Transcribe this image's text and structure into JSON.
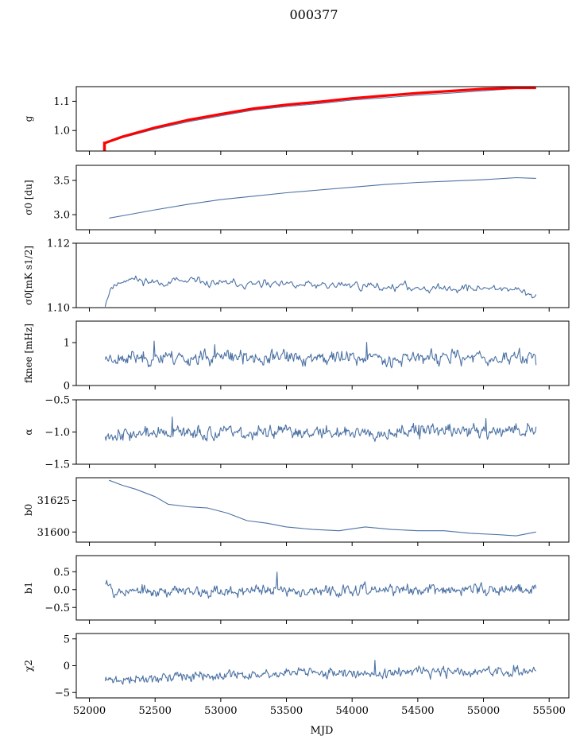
{
  "figure": {
    "title": "000377",
    "xlabel": "MJD"
  },
  "colors": {
    "series": "#4c72a4",
    "overlay": "#ff0000",
    "frame": "#000000"
  },
  "chart_data": [
    {
      "type": "line",
      "ylabel": "g",
      "xlim": [
        51900,
        55650
      ],
      "ylim": [
        0.93,
        1.15
      ],
      "yticks": [
        1.0,
        1.1
      ],
      "ytick_labels": [
        "1.0",
        "1.1"
      ],
      "series": [
        {
          "style": "blue-thin",
          "x": [
            52120,
            52250,
            52500,
            52750,
            53000,
            53250,
            53500,
            53750,
            54000,
            54250,
            54500,
            54750,
            55000,
            55250,
            55400
          ],
          "y": [
            0.955,
            0.975,
            1.005,
            1.03,
            1.05,
            1.07,
            1.082,
            1.092,
            1.104,
            1.112,
            1.121,
            1.128,
            1.136,
            1.144,
            1.146
          ]
        },
        {
          "style": "red-thick",
          "x": [
            52120,
            52250,
            52500,
            52750,
            53000,
            53250,
            53500,
            53750,
            54000,
            54250,
            54500,
            54750,
            55000,
            55250,
            55400
          ],
          "y": [
            0.958,
            0.979,
            1.01,
            1.036,
            1.056,
            1.075,
            1.088,
            1.098,
            1.11,
            1.119,
            1.128,
            1.135,
            1.142,
            1.146,
            1.146
          ]
        },
        {
          "style": "red-spike",
          "x": [
            52115,
            52115
          ],
          "y": [
            0.925,
            0.962
          ]
        }
      ]
    },
    {
      "type": "line",
      "ylabel": "σ0 [du]",
      "xlim": [
        51900,
        55650
      ],
      "ylim": [
        2.78,
        3.72
      ],
      "yticks": [
        3.0,
        3.5
      ],
      "ytick_labels": [
        "3.0",
        "3.5"
      ],
      "series": [
        {
          "style": "blue",
          "x": [
            52150,
            52300,
            52500,
            52750,
            53000,
            53250,
            53500,
            53750,
            54000,
            54250,
            54500,
            54750,
            55000,
            55250,
            55400
          ],
          "y": [
            2.95,
            3.0,
            3.07,
            3.15,
            3.22,
            3.27,
            3.32,
            3.36,
            3.4,
            3.44,
            3.47,
            3.49,
            3.51,
            3.54,
            3.53
          ]
        }
      ]
    },
    {
      "type": "line",
      "ylabel": "σ0[mK s1/2]",
      "xlim": [
        51900,
        55650
      ],
      "ylim": [
        1.1,
        1.12
      ],
      "yticks": [
        1.1,
        1.12
      ],
      "ytick_labels": [
        "1.10",
        "1.12"
      ],
      "series": [
        {
          "style": "noisy",
          "seed": 11,
          "n": 340,
          "x0": 52120,
          "x1": 55400,
          "base_x": [
            52120,
            52160,
            52280,
            52500,
            52700,
            53000,
            53300,
            53600,
            54000,
            54300,
            54700,
            55000,
            55200,
            55400
          ],
          "base_y": [
            1.101,
            1.106,
            1.109,
            1.108,
            1.108,
            1.1075,
            1.107,
            1.107,
            1.107,
            1.1065,
            1.106,
            1.106,
            1.106,
            1.103
          ],
          "noise": 0.001
        }
      ]
    },
    {
      "type": "line",
      "ylabel": "fknee [mHz]",
      "xlim": [
        51900,
        55650
      ],
      "ylim": [
        0.0,
        1.5
      ],
      "yticks": [
        0,
        1
      ],
      "ytick_labels": [
        "0",
        "1"
      ],
      "series": [
        {
          "style": "noisy",
          "seed": 23,
          "n": 520,
          "x0": 52120,
          "x1": 55400,
          "base_x": [
            52120,
            55400
          ],
          "base_y": [
            0.65,
            0.65
          ],
          "noise": 0.13
        }
      ]
    },
    {
      "type": "line",
      "ylabel": "α",
      "xlim": [
        51900,
        55650
      ],
      "ylim": [
        -1.5,
        -0.5
      ],
      "yticks": [
        -1.5,
        -1.0,
        -0.5
      ],
      "ytick_labels": [
        "−1.5",
        "−1.0",
        "−0.5"
      ],
      "series": [
        {
          "style": "noisy",
          "seed": 37,
          "n": 560,
          "x0": 52120,
          "x1": 55400,
          "base_x": [
            52120,
            55400
          ],
          "base_y": [
            -1.03,
            -0.97
          ],
          "noise": 0.08
        }
      ]
    },
    {
      "type": "line",
      "ylabel": "b0",
      "xlim": [
        51900,
        55650
      ],
      "ylim": [
        31592,
        31643
      ],
      "yticks": [
        31600,
        31625
      ],
      "ytick_labels": [
        "31600",
        "31625"
      ],
      "series": [
        {
          "style": "blue",
          "x": [
            52150,
            52250,
            52350,
            52500,
            52600,
            52750,
            52900,
            53050,
            53200,
            53350,
            53500,
            53700,
            53900,
            54100,
            54300,
            54500,
            54700,
            54900,
            55100,
            55250,
            55400
          ],
          "y": [
            31641,
            31637,
            31634,
            31628,
            31622,
            31620,
            31619,
            31615,
            31609,
            31607,
            31604,
            31602,
            31601,
            31604,
            31602,
            31601,
            31601,
            31599,
            31598,
            31597,
            31600
          ]
        }
      ]
    },
    {
      "type": "line",
      "ylabel": "b1",
      "xlim": [
        51900,
        55650
      ],
      "ylim": [
        -0.85,
        0.95
      ],
      "yticks": [
        -0.5,
        0.0,
        0.5
      ],
      "ytick_labels": [
        "−0.5",
        "0.0",
        "0.5"
      ],
      "series": [
        {
          "style": "noisy",
          "seed": 53,
          "n": 560,
          "x0": 52120,
          "x1": 55400,
          "base_x": [
            52120,
            52200,
            55400
          ],
          "base_y": [
            0.3,
            -0.05,
            0.0
          ],
          "noise": 0.12
        }
      ]
    },
    {
      "type": "line",
      "ylabel": "χ2",
      "xlim": [
        51900,
        55650
      ],
      "ylim": [
        -6,
        6
      ],
      "yticks": [
        -5,
        0,
        5
      ],
      "ytick_labels": [
        "−5",
        "0",
        "5"
      ],
      "xticks": [
        52000,
        52500,
        53000,
        53500,
        54000,
        54500,
        55000,
        55500
      ],
      "xtick_labels": [
        "52000",
        "52500",
        "53000",
        "53500",
        "54000",
        "54500",
        "55000",
        "55500"
      ],
      "series": [
        {
          "style": "noisy",
          "seed": 71,
          "n": 560,
          "x0": 52120,
          "x1": 55400,
          "base_x": [
            52120,
            52300,
            53000,
            53800,
            55400
          ],
          "base_y": [
            -2.8,
            -2.6,
            -1.8,
            -1.3,
            -1.2
          ],
          "noise": 0.7
        }
      ]
    }
  ]
}
